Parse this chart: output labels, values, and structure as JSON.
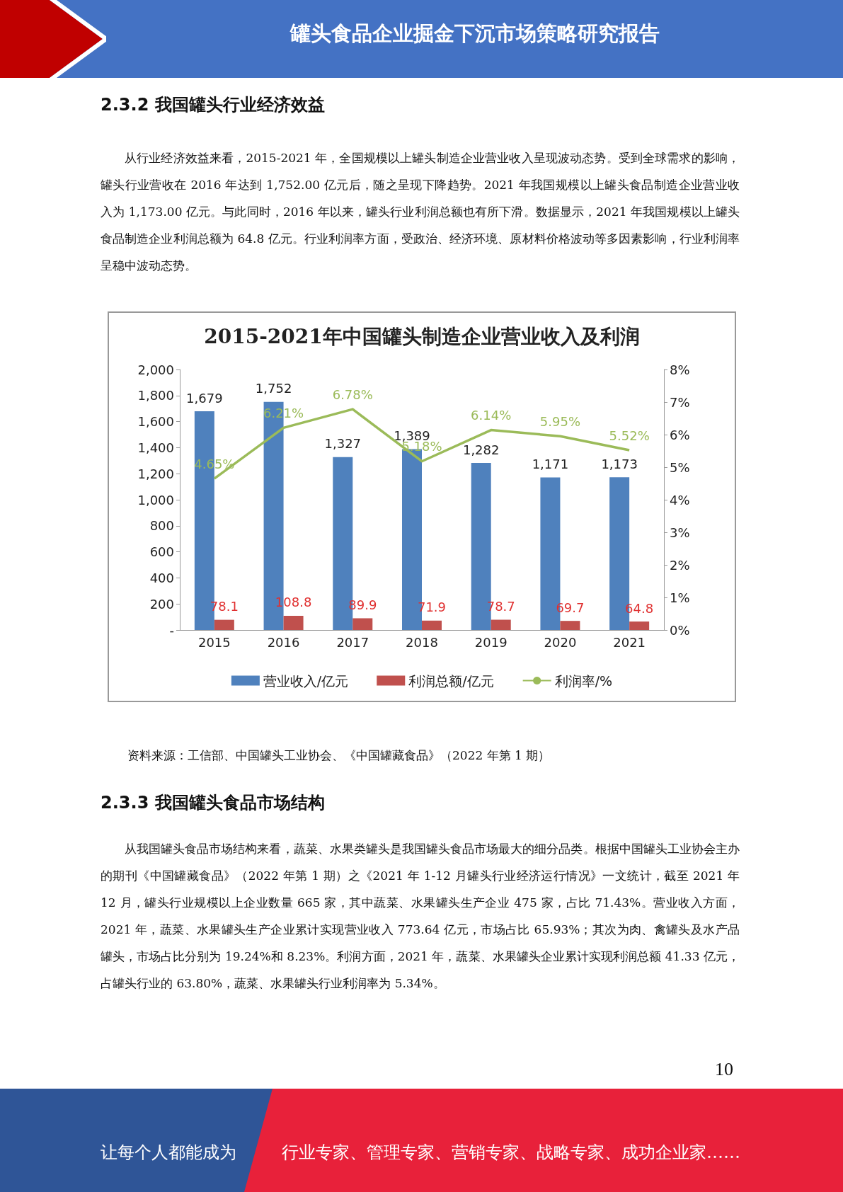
{
  "chart_data": {
    "type": "bar",
    "title": "2015-2021年中国罐头制造企业营业收入及利润",
    "categories": [
      "2015",
      "2016",
      "2017",
      "2018",
      "2019",
      "2020",
      "2021"
    ],
    "series": [
      {
        "name": "营业收入/亿元",
        "color": "#4f81bd",
        "values": [
          1679,
          1752,
          1327,
          1389,
          1282,
          1171,
          1173
        ],
        "value_labels": [
          "1,679",
          "1,752",
          "1,327",
          "1,389",
          "1,282",
          "1,171",
          "1,173"
        ]
      },
      {
        "name": "利润总额/亿元",
        "color": "#c0504d",
        "values": [
          78.1,
          108.8,
          89.9,
          71.9,
          78.7,
          69.7,
          64.8
        ],
        "value_labels": [
          "78.1",
          "108.8",
          "89.9",
          "71.9",
          "78.7",
          "69.7",
          "64.8"
        ]
      },
      {
        "name": "利润率/%",
        "type": "line",
        "axis": "y2",
        "color": "#9bbb59",
        "values": [
          4.65,
          6.21,
          6.78,
          5.18,
          6.14,
          5.95,
          5.52
        ],
        "value_labels": [
          "4.65%",
          "6.21%",
          "6.78%",
          "5.18%",
          "6.14%",
          "5.95%",
          "5.52%"
        ]
      }
    ],
    "ylim": [
      0,
      2000
    ],
    "yticks": [
      {
        "value": 0,
        "label": "-"
      },
      200,
      400,
      600,
      800,
      {
        "value": 1000,
        "label": "1,000"
      },
      {
        "value": 1200,
        "label": "1,200"
      },
      {
        "value": 1400,
        "label": "1,400"
      },
      {
        "value": 1600,
        "label": "1,600"
      },
      {
        "value": 1800,
        "label": "1,800"
      },
      {
        "value": 2000,
        "label": "2,000"
      }
    ],
    "y2lim": [
      0,
      8
    ],
    "y2ticks": [
      {
        "value": 0,
        "label": "0%"
      },
      {
        "value": 1,
        "label": "1%"
      },
      {
        "value": 2,
        "label": "2%"
      },
      {
        "value": 3,
        "label": "3%"
      },
      {
        "value": 4,
        "label": "4%"
      },
      {
        "value": 5,
        "label": "5%"
      },
      {
        "value": 6,
        "label": "6%"
      },
      {
        "value": 7,
        "label": "7%"
      },
      {
        "value": 8,
        "label": "8%"
      }
    ],
    "legend": "bottom",
    "marker": "none",
    "annotations": [
      "罐头食品企业掘金下沉市场策略研究报告",
      "2.3.2 我国罐头行业经济效益",
      "从行业经济效益来看，2015-2021 年，全国规模以上罐头制造企业营业收入呈现波动态势。受到全球需求的影响，罐头行业营收在 2016 年达到 1,752.00 亿元后，随之呈现下降趋势。2021 年我国规模以上罐头食品制造企业营业收入为 1,173.00 亿元。与此同时，2016 年以来，罐头行业利润总额也有所下滑。数据显示，2021 年我国规模以上罐头食品制造企业利润总额为 64.8 亿元。行业利润率方面，受政治、经济环境、原材料价格波动等多因素影响，行业利润率呈稳中波动态势。",
      "资料来源：工信部、中国罐头工业协会、《中国罐藏食品》（2022 年第 1 期）",
      "2.3.3 我国罐头食品市场结构",
      "从我国罐头食品市场结构来看，蔬菜、水果类罐头是我国罐头食品市场最大的细分品类。根据中国罐头工业协会主办的期刊《中国罐藏食品》（2022 年第 1 期）之《2021 年 1-12 月罐头行业经济运行情况》一文统计，截至 2021 年 12 月，罐头行业规模以上企业数量 665 家，其中蔬菜、水果罐头生产企业 475 家，占比 71.43%。营业收入方面，2021 年，蔬菜、水果罐头生产企业累计实现营业收入 773.64 亿元，市场占比 65.93%；其次为肉、禽罐头及水产品罐头，市场占比分别为 19.24%和 8.23%。利润方面，2021 年，蔬菜、水果罐头企业累计实现利润总额 41.33 亿元，占罐头行业的 63.80%，蔬菜、水果罐头行业利润率为 5.34%。",
      "10",
      "让每个人都能成为",
      "行业专家、管理专家、营销专家、战略专家、成功企业家……"
    ]
  }
}
